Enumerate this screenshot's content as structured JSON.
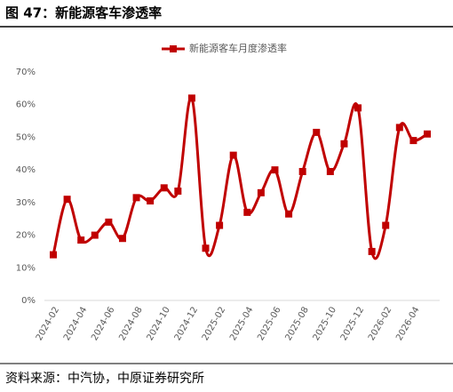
{
  "chart_data": {
    "type": "line",
    "title": "图 47：新能源客车渗透率",
    "source": "资料来源：中汽协，中原证券研究所",
    "categories": [
      "2024-02",
      null,
      "2024-04",
      null,
      "2024-06",
      null,
      "2024-08",
      null,
      "2024-10",
      null,
      "2024-12",
      null,
      "2025-02",
      null,
      "2025-04",
      null,
      "2025-06",
      null,
      "2025-08",
      null,
      "2025-10",
      null,
      "2025-12",
      null,
      "2026-02",
      null,
      "2026-04",
      null
    ],
    "series": [
      {
        "name": "新能源客车月度渗透率",
        "color": "#c00000",
        "values": [
          14,
          31,
          18.5,
          20,
          24,
          19,
          31.5,
          30.5,
          34.5,
          33.5,
          62,
          16,
          23,
          44.5,
          27,
          33,
          40,
          26.5,
          39.5,
          51.5,
          39.5,
          48,
          59,
          15,
          23,
          53,
          49,
          51
        ]
      }
    ],
    "ylim": [
      0,
      70
    ],
    "yticks": [
      {
        "value": 0,
        "label": "0%"
      },
      {
        "value": 10,
        "label": "10%"
      },
      {
        "value": 20,
        "label": "20%"
      },
      {
        "value": 30,
        "label": "30%"
      },
      {
        "value": 40,
        "label": "40%"
      },
      {
        "value": 50,
        "label": "50%"
      },
      {
        "value": 60,
        "label": "60%"
      },
      {
        "value": 70,
        "label": "70%"
      }
    ],
    "grid": false,
    "legend": "top"
  }
}
